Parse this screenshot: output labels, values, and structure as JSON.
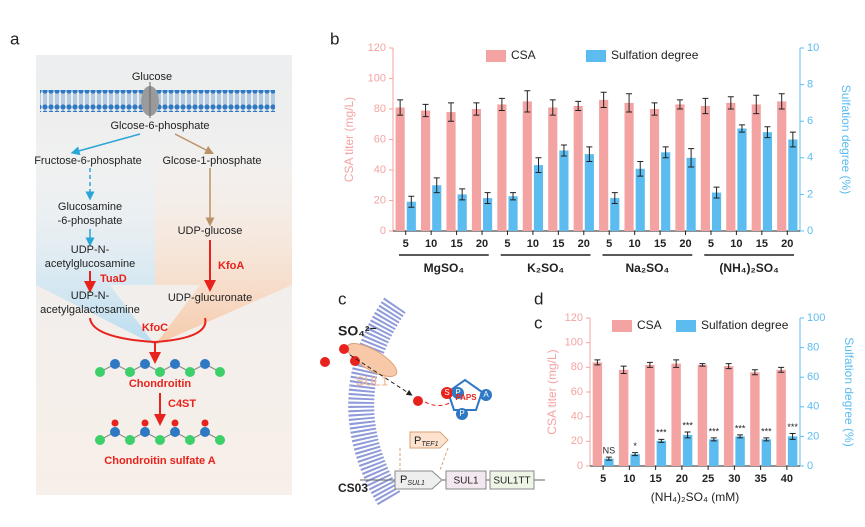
{
  "panel_labels": [
    "a",
    "b",
    "c",
    "d",
    "c"
  ],
  "panel_a": {
    "glucose": "Glucose",
    "g6p": "Glcose-6-phosphate",
    "f6p": "Fructose-6-phosphate",
    "g1p": "Glcose-1-phosphate",
    "glcn6p": [
      "Glucosamine",
      "-6-phosphate"
    ],
    "udp_glcnac": [
      "UDP-N-",
      "acetylglucosamine"
    ],
    "tuad": "TuaD",
    "udp_galnac": [
      "UDP-N-",
      "acetylgalactosamine"
    ],
    "udp_glc": "UDP-glucose",
    "kfoa": "KfoA",
    "udp_glca": "UDP-glucuronate",
    "kfoc": "KfoC",
    "chondroitin": "Chondroitin",
    "c4st": "C4ST",
    "csa": "Chondroitin sulfate A"
  },
  "panel_c": {
    "ion": "SO₄²⁻",
    "transporter": "SUL1",
    "paps": [
      "S",
      "P",
      "PAPS",
      "A",
      "P"
    ],
    "promoter_tef1": {
      "p": "P",
      "sub": "TEF1"
    },
    "strain": "CS03",
    "promoter_sul1": {
      "p": "P",
      "sub": "SUL1"
    },
    "gene": "SUL1",
    "terminator": "SUL1TT"
  },
  "chart_data": [
    {
      "type": "bar",
      "categories": [
        5,
        10,
        15,
        20,
        5,
        10,
        15,
        20,
        5,
        10,
        15,
        20,
        5,
        10,
        15,
        20
      ],
      "groups": [
        "MgSO₄",
        "K₂SO₄",
        "Na₂SO₄",
        "(NH₄)₂SO₄"
      ],
      "ylabel": "CSA titer (mg/L)",
      "y2label": "Sulfation degree (%)",
      "ylim": [
        0,
        120
      ],
      "yticks": [
        0,
        20,
        40,
        60,
        80,
        100,
        120
      ],
      "y2lim": [
        0,
        10
      ],
      "y2ticks": [
        0,
        2,
        4,
        6,
        8,
        10
      ],
      "legend": "top",
      "series": [
        {
          "name": "CSA",
          "color": "#f4a3a3",
          "values": [
            81,
            79,
            78,
            80,
            83,
            85,
            81,
            82,
            86,
            84,
            80,
            83,
            82,
            84,
            83,
            85
          ],
          "errors": [
            5,
            4,
            6,
            4,
            4,
            7,
            5,
            3,
            5,
            6,
            4,
            3,
            5,
            4,
            6,
            5
          ]
        },
        {
          "name": "Sulfation degree",
          "color": "#5cbcf0",
          "axis": "y2",
          "values": [
            1.6,
            2.5,
            2.0,
            1.8,
            1.9,
            3.6,
            4.4,
            4.2,
            1.8,
            3.4,
            4.3,
            4.0,
            2.1,
            5.6,
            5.4,
            5.0
          ],
          "errors": [
            0.3,
            0.4,
            0.3,
            0.3,
            0.2,
            0.4,
            0.3,
            0.4,
            0.3,
            0.4,
            0.3,
            0.5,
            0.3,
            0.2,
            0.3,
            0.4
          ]
        }
      ]
    },
    {
      "type": "bar",
      "categories": [
        5,
        10,
        15,
        20,
        25,
        30,
        35,
        40
      ],
      "xlabel": "(NH₄)₂SO₄ (mM)",
      "ylabel": "CSA titer (mg/L)",
      "y2label": "Sulfation degree (%)",
      "ylim": [
        0,
        120
      ],
      "yticks": [
        0,
        20,
        40,
        60,
        80,
        100,
        120
      ],
      "y2lim": [
        0,
        100
      ],
      "y2ticks": [
        0,
        20,
        40,
        60,
        80,
        100
      ],
      "legend": "top",
      "series": [
        {
          "name": "CSA",
          "color": "#f4a3a3",
          "values": [
            84,
            78,
            82,
            83,
            82,
            81,
            76,
            78
          ],
          "errors": [
            2,
            3,
            2,
            3,
            1,
            2,
            2,
            2
          ]
        },
        {
          "name": "Sulfation degree",
          "color": "#5cbcf0",
          "axis": "y2",
          "values": [
            5,
            8,
            17,
            21,
            18,
            20,
            18,
            20
          ],
          "errors": [
            1,
            1,
            1,
            2,
            1,
            1,
            1,
            2
          ],
          "annotations": [
            "NS",
            "*",
            "***",
            "***",
            "***",
            "***",
            "***",
            "***"
          ]
        }
      ]
    }
  ]
}
